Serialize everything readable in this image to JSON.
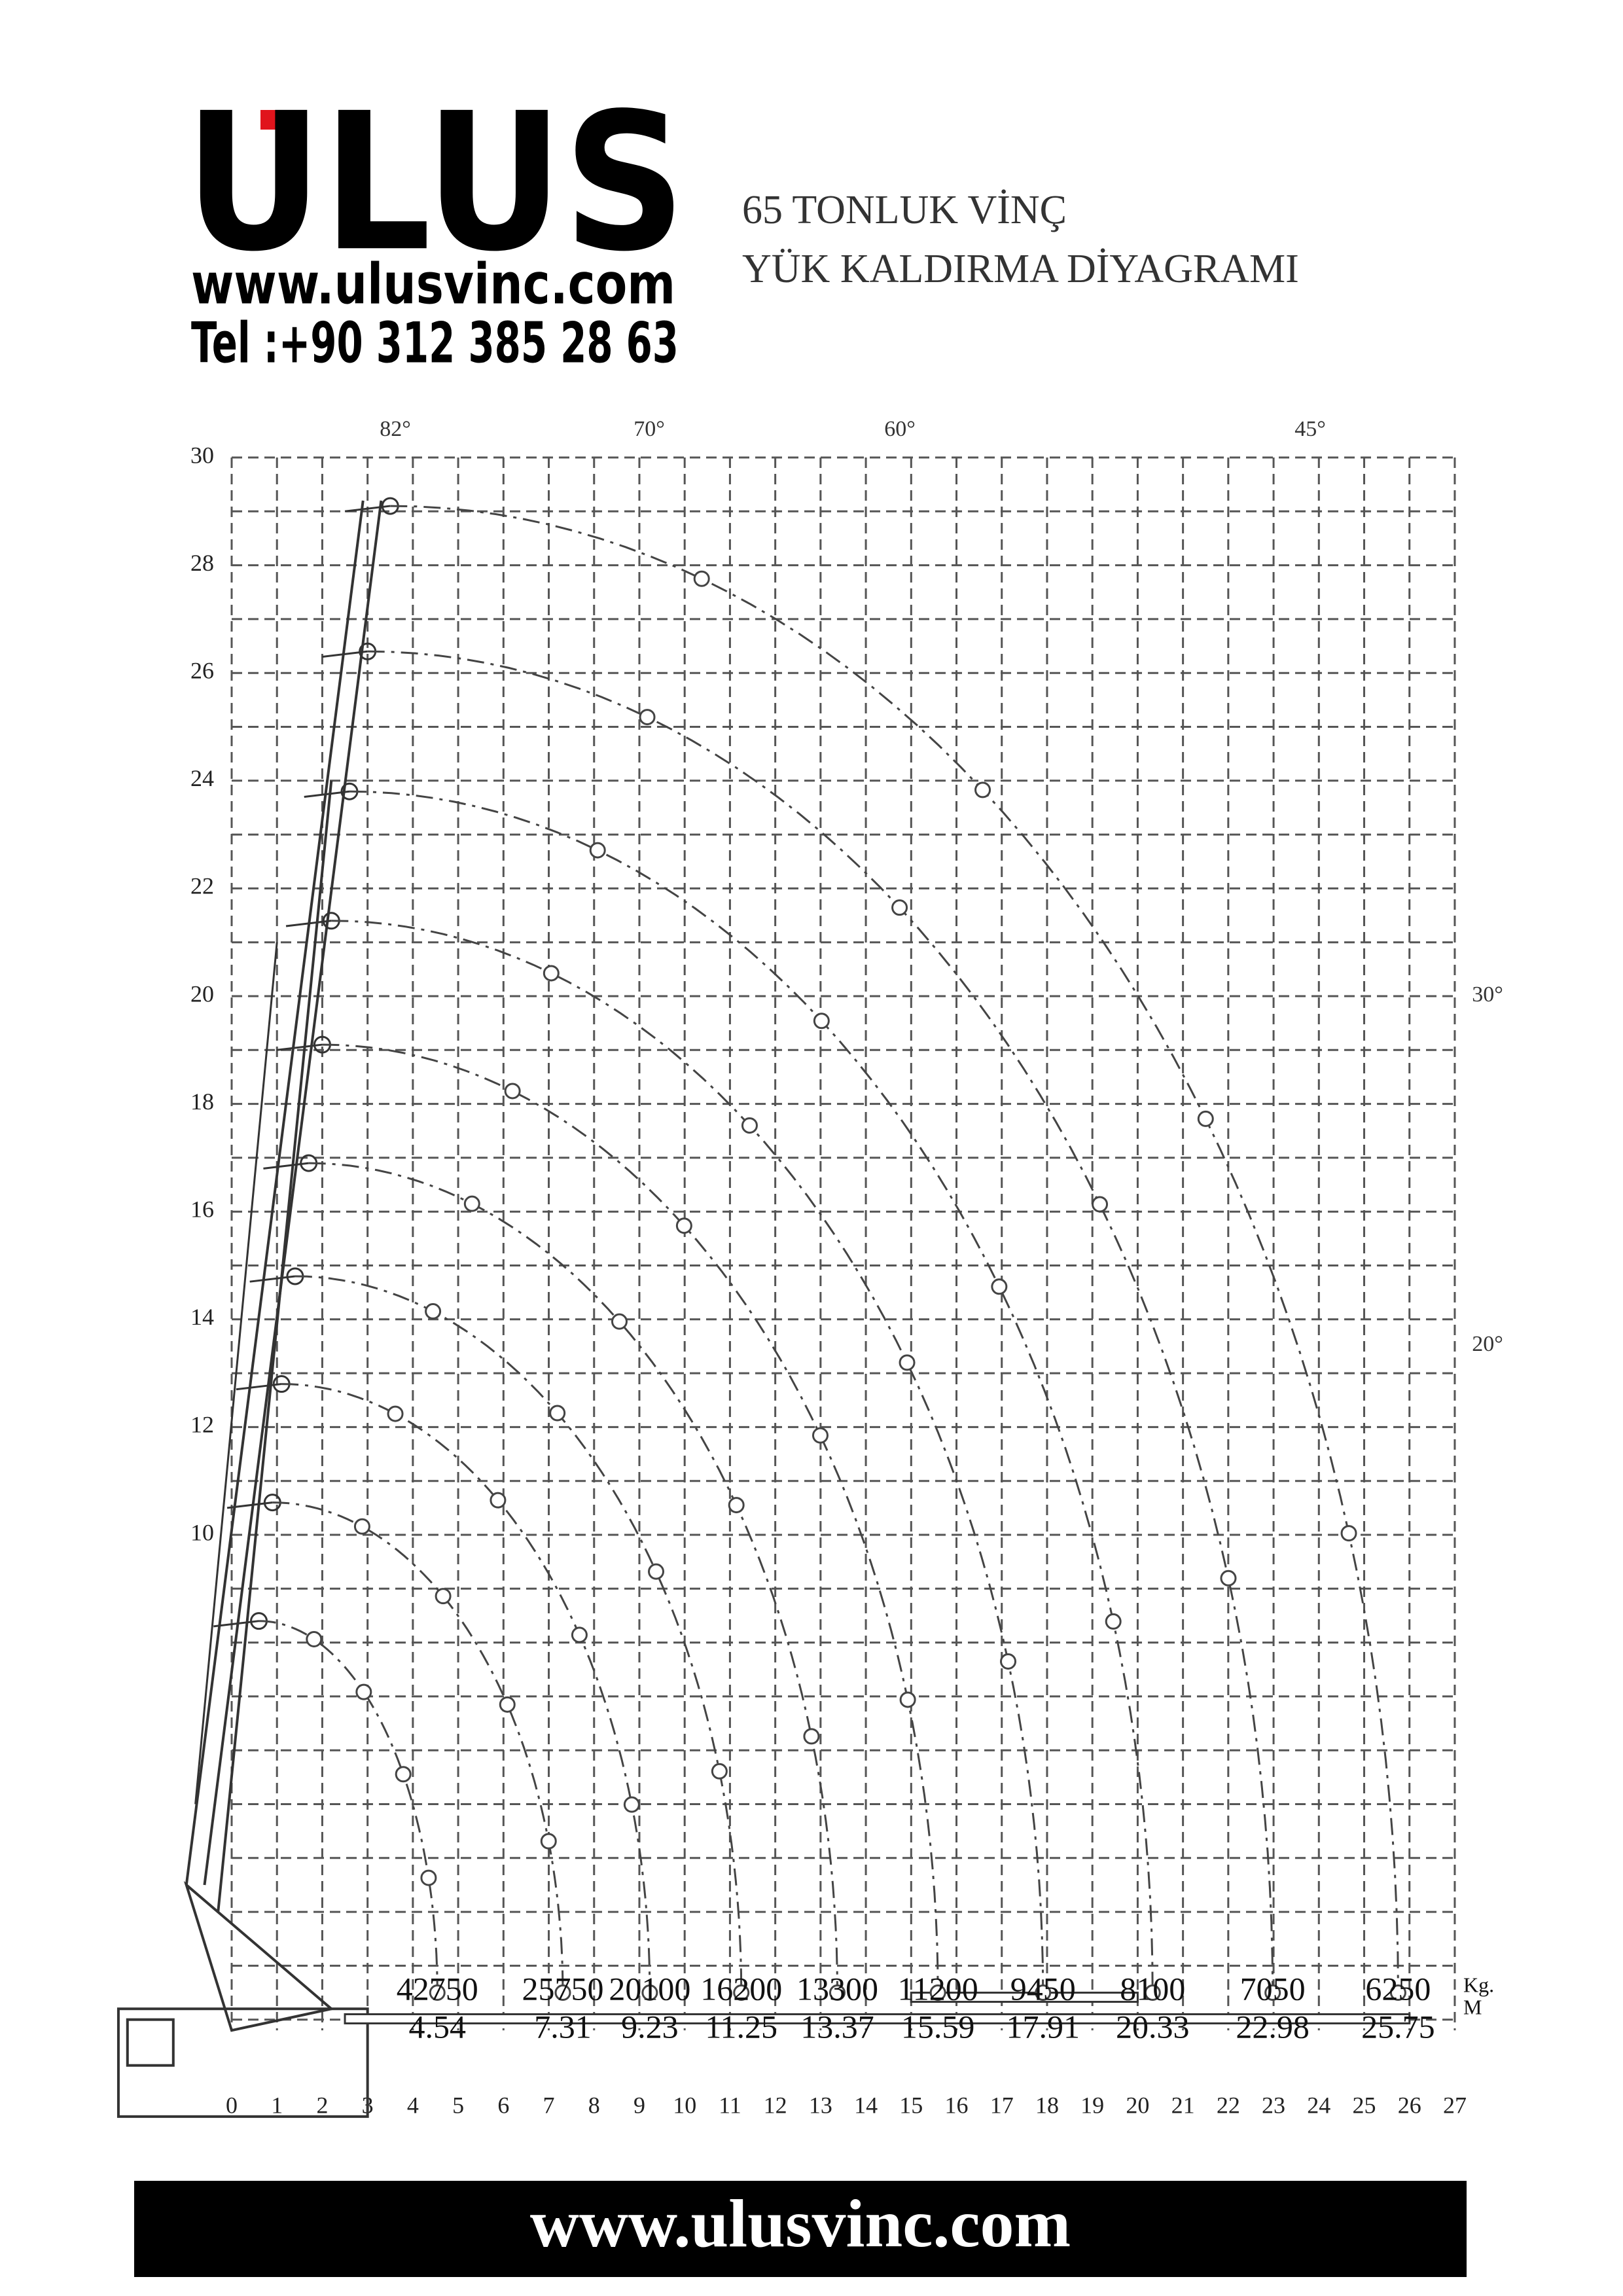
{
  "header": {
    "brand": "ULUS",
    "website": "www.ulusvinc.com",
    "phone": "Tel :+90 312 385 28 63",
    "title_lines": [
      "65 TONLUK VİNÇ",
      "YÜK KALDIRMA DİYAGRAMI"
    ]
  },
  "diagram": {
    "x_ticks": [
      0,
      1,
      2,
      3,
      4,
      5,
      6,
      7,
      8,
      9,
      10,
      11,
      12,
      13,
      14,
      15,
      16,
      17,
      18,
      19,
      20,
      21,
      22,
      23,
      24,
      25,
      26,
      27
    ],
    "y_ticks": [
      10,
      12,
      14,
      16,
      18,
      20,
      22,
      24,
      26,
      28,
      30
    ],
    "angles": [
      "82°",
      "70°",
      "60°",
      "45°",
      "30°",
      "20°"
    ],
    "units": {
      "load": "Kg.",
      "radius": "M"
    },
    "capacities": [
      {
        "load": 42750,
        "radius": 4.54
      },
      {
        "load": 25750,
        "radius": 7.31
      },
      {
        "load": 20100,
        "radius": 9.23
      },
      {
        "load": 16200,
        "radius": 11.25
      },
      {
        "load": 13300,
        "radius": 13.37
      },
      {
        "load": 11200,
        "radius": 15.59
      },
      {
        "load": 9450,
        "radius": 17.91
      },
      {
        "load": 8100,
        "radius": 20.33
      },
      {
        "load": 7050,
        "radius": 22.98
      },
      {
        "load": 6250,
        "radius": 25.75
      }
    ]
  },
  "footer": {
    "website": "www.ulusvinc.com"
  }
}
